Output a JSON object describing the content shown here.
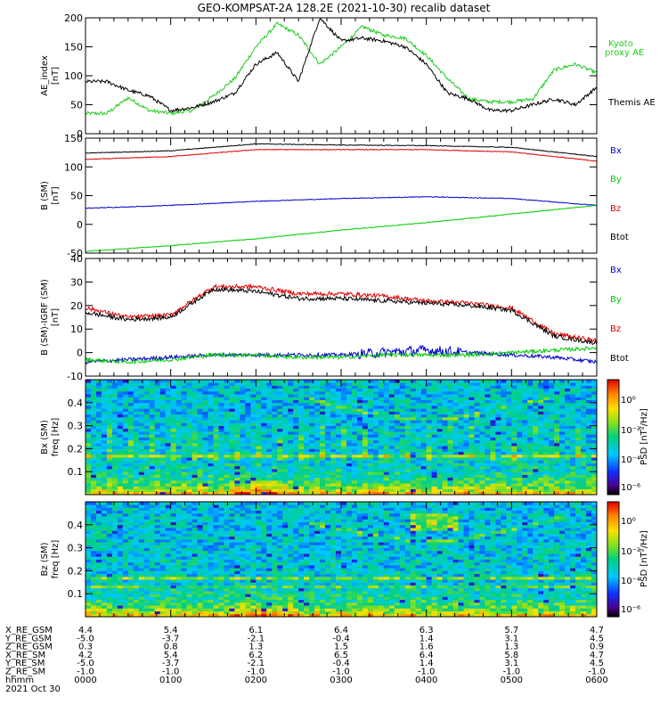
{
  "title": "GEO-KOMPSAT-2A 128.2E (2021-10-30) recalib dataset",
  "panels": {
    "ae": {
      "ylabel_top": "AE_index",
      "ylabel_bot": "[nT]",
      "legend_kyoto": [
        "Kyoto",
        "proxy AE"
      ],
      "legend_themis": "Themis AE",
      "yticks": [
        "0",
        "50",
        "100",
        "150",
        "200"
      ]
    },
    "b": {
      "ylabel_top": "B (SM)",
      "ylabel_bot": "[nT]",
      "legend": [
        "Bx",
        "By",
        "Bz",
        "Btot"
      ],
      "yticks": [
        "-50",
        "0",
        "50",
        "100",
        "150"
      ]
    },
    "db": {
      "ylabel_top": "B (SM)-IGRF (SM)",
      "ylabel_bot": "[nT]",
      "legend": [
        "Bx",
        "By",
        "Bz",
        "Btot"
      ],
      "yticks": [
        "-10",
        "0",
        "10",
        "20",
        "30",
        "40"
      ]
    },
    "specx": {
      "ylabel_top": "Bx (SM)",
      "ylabel_bot": "freq [Hz]",
      "yticks": [
        "0.1",
        "0.2",
        "0.3",
        "0.4"
      ],
      "cbar_label": "PSD [nT²/Hz]",
      "cbar_ticks": [
        "10⁰",
        "10⁻²",
        "10⁻⁴",
        "10⁻⁶"
      ]
    },
    "specz": {
      "ylabel_top": "Bz (SM)",
      "ylabel_bot": "freq [Hz]",
      "yticks": [
        "0.1",
        "0.2",
        "0.3",
        "0.4"
      ],
      "cbar_label": "PSD [nT²/Hz]",
      "cbar_ticks": [
        "10⁰",
        "10⁻²",
        "10⁻⁴",
        "10⁻⁶"
      ]
    }
  },
  "ephemeris": {
    "rows": [
      {
        "label": "X_RE_GSM",
        "values": [
          "4.4",
          "5.4",
          "6.1",
          "6.4",
          "6.3",
          "5.7",
          "4.7"
        ]
      },
      {
        "label": "Y_RE_GSM",
        "values": [
          "-5.0",
          "-3.7",
          "-2.1",
          "-0.4",
          "1.4",
          "3.1",
          "4.5"
        ]
      },
      {
        "label": "Z_RE_GSM",
        "values": [
          "0.3",
          "0.8",
          "1.3",
          "1.5",
          "1.6",
          "1.3",
          "0.9"
        ]
      },
      {
        "label": "X_RE_SM",
        "values": [
          "4.2",
          "5.4",
          "6.2",
          "6.5",
          "6.4",
          "5.8",
          "4.7"
        ]
      },
      {
        "label": "Y_RE_SM",
        "values": [
          "-5.0",
          "-3.7",
          "-2.1",
          "-0.4",
          "1.4",
          "3.1",
          "4.5"
        ]
      },
      {
        "label": "Z_RE_SM",
        "values": [
          "-1.0",
          "-1.0",
          "-1.0",
          "-1.0",
          "-1.0",
          "-1.0",
          "-1.0"
        ]
      },
      {
        "label": "hhmm",
        "values": [
          "0000",
          "0100",
          "0200",
          "0300",
          "0400",
          "0500",
          "0600"
        ]
      }
    ],
    "date": "2021 Oct 30"
  },
  "colors": {
    "bx": "#0000cc",
    "by": "#00cc00",
    "bz": "#dd0000",
    "btot": "#000000",
    "kyoto": "#22cc22",
    "themis": "#000000"
  },
  "chart_data": [
    {
      "type": "line",
      "x_unit": "hours UT",
      "xlim": [
        0,
        6
      ],
      "ylim": [
        0,
        200
      ],
      "series": [
        {
          "name": "Kyoto proxy AE",
          "x": [
            0,
            0.25,
            0.5,
            0.75,
            1.0,
            1.25,
            1.5,
            1.75,
            2.0,
            2.25,
            2.5,
            2.75,
            3.0,
            3.25,
            3.5,
            3.75,
            4.0,
            4.25,
            4.5,
            4.75,
            5.0,
            5.25,
            5.5,
            5.75,
            6.0
          ],
          "values": [
            35,
            35,
            62,
            40,
            35,
            40,
            65,
            95,
            150,
            190,
            170,
            120,
            150,
            185,
            170,
            165,
            135,
            95,
            60,
            55,
            55,
            60,
            110,
            120,
            105
          ]
        },
        {
          "name": "Themis AE",
          "x": [
            0,
            0.25,
            0.5,
            0.75,
            1.0,
            1.25,
            1.5,
            1.75,
            2.0,
            2.25,
            2.5,
            2.75,
            3.0,
            3.25,
            3.5,
            3.75,
            4.0,
            4.25,
            4.5,
            4.75,
            5.0,
            5.25,
            5.5,
            5.75,
            6.0
          ],
          "values": [
            90,
            90,
            75,
            65,
            40,
            45,
            55,
            70,
            120,
            140,
            90,
            200,
            160,
            165,
            160,
            150,
            120,
            70,
            60,
            40,
            40,
            50,
            60,
            50,
            80
          ]
        }
      ]
    },
    {
      "type": "line",
      "x_unit": "hours UT",
      "xlim": [
        0,
        6
      ],
      "ylim": [
        -50,
        150
      ],
      "series": [
        {
          "name": "Bx",
          "x": [
            0,
            1,
            2,
            3,
            4,
            5,
            6
          ],
          "values": [
            28,
            33,
            40,
            45,
            48,
            45,
            33
          ]
        },
        {
          "name": "By",
          "x": [
            0,
            1,
            2,
            3,
            4,
            5,
            6
          ],
          "values": [
            -47,
            -37,
            -25,
            -10,
            3,
            18,
            33
          ]
        },
        {
          "name": "Bz",
          "x": [
            0,
            1,
            2,
            3,
            4,
            5,
            6
          ],
          "values": [
            113,
            118,
            130,
            130,
            130,
            126,
            110
          ]
        },
        {
          "name": "Btot",
          "x": [
            0,
            1,
            2,
            3,
            4,
            5,
            6
          ],
          "values": [
            124,
            128,
            140,
            138,
            137,
            134,
            118
          ]
        }
      ]
    },
    {
      "type": "line",
      "x_unit": "hours UT",
      "xlim": [
        0,
        6
      ],
      "ylim": [
        -10,
        40
      ],
      "series": [
        {
          "name": "Bx",
          "x": [
            0,
            0.5,
            1,
            1.5,
            2,
            2.5,
            3,
            3.5,
            4,
            4.5,
            5,
            5.5,
            6
          ],
          "values": [
            -4,
            -3,
            -2,
            -1,
            -1,
            -1,
            -1,
            0,
            1,
            0,
            -1,
            -2,
            -4
          ]
        },
        {
          "name": "By",
          "x": [
            0,
            0.5,
            1,
            1.5,
            2,
            2.5,
            3,
            3.5,
            4,
            4.5,
            5,
            5.5,
            6
          ],
          "values": [
            -3,
            -4,
            -3,
            -1,
            -1,
            -2,
            -2,
            -1,
            -1,
            -1,
            0,
            1,
            2
          ]
        },
        {
          "name": "Bz",
          "x": [
            0,
            0.5,
            1,
            1.5,
            2,
            2.5,
            3,
            3.5,
            4,
            4.5,
            5,
            5.5,
            6
          ],
          "values": [
            19,
            15,
            16,
            28,
            28,
            25,
            25,
            24,
            22,
            21,
            19,
            8,
            5
          ]
        },
        {
          "name": "Btot",
          "x": [
            0,
            0.5,
            1,
            1.5,
            2,
            2.5,
            3,
            3.5,
            4,
            4.5,
            5,
            5.5,
            6
          ],
          "values": [
            17,
            14,
            15,
            27,
            26,
            23,
            23,
            22,
            21,
            20,
            18,
            7,
            4
          ]
        }
      ]
    },
    {
      "type": "heatmap",
      "x_unit": "hours UT",
      "xlim": [
        0,
        6
      ],
      "ylim": [
        0,
        0.5
      ],
      "zscale": "log",
      "zlim": [
        1e-07,
        10
      ]
    },
    {
      "type": "heatmap",
      "x_unit": "hours UT",
      "xlim": [
        0,
        6
      ],
      "ylim": [
        0,
        0.5
      ],
      "zscale": "log",
      "zlim": [
        1e-07,
        10
      ]
    }
  ]
}
